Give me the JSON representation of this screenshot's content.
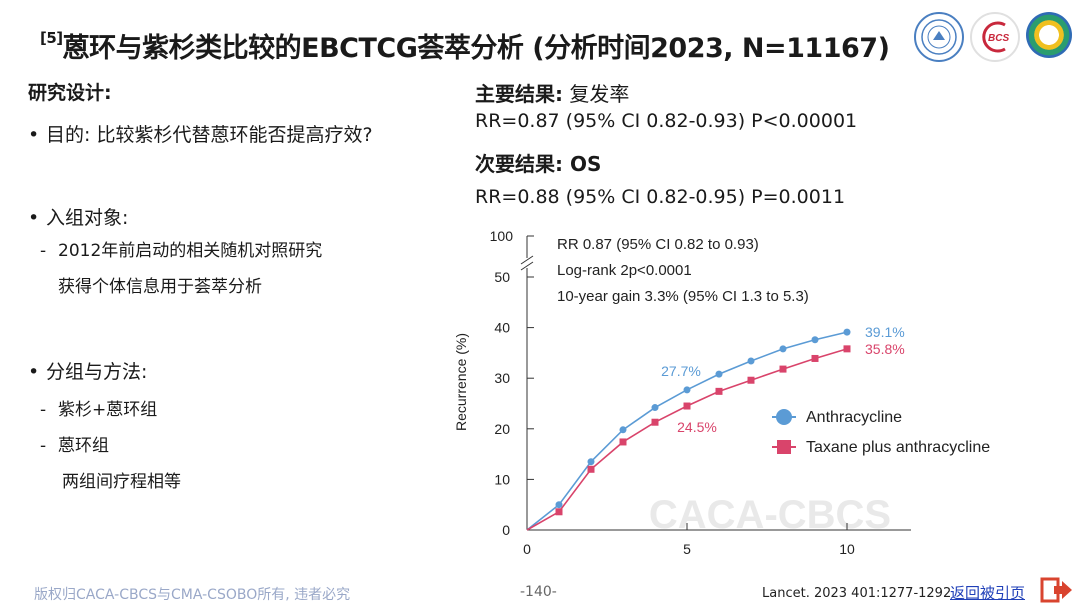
{
  "header": {
    "ref": "[5]",
    "title": "蒽环与紫杉类比较的EBCTCG荟萃分析 (分析时间2023, N=11167)",
    "logos": [
      "university-seal-logo",
      "bcs-logo",
      "ring-logo"
    ]
  },
  "design": {
    "heading": "研究设计:",
    "purpose": "目的: 比较紫杉代替蒽环能否提高疗效?",
    "population_label": "入组对象:",
    "population_item_1": "2012年前启动的相关随机对照研究",
    "population_item_2": "获得个体信息用于荟萃分析",
    "groups_label": "分组与方法:",
    "group_1": "紫杉+蒽环组",
    "group_2": "蒽环组",
    "group_note": "两组间疗程相等"
  },
  "results": {
    "primary_label": "主要结果:",
    "primary_metric": "复发率",
    "primary_value": "RR=0.87 (95% CI 0.82-0.93) P<0.00001",
    "secondary_label": "次要结果:",
    "secondary_metric": "OS",
    "secondary_value": "RR=0.88 (95% CI 0.82-0.95) P=0.0011"
  },
  "chart_data": {
    "type": "line",
    "title": "",
    "xlabel": "",
    "ylabel": "Recurrence (%)",
    "xlim": [
      0,
      12
    ],
    "ylim": [
      0,
      50
    ],
    "broken_axis_top_tick": "100",
    "x_ticks": [
      0,
      5,
      10
    ],
    "y_ticks": [
      0,
      10,
      20,
      30,
      40,
      50
    ],
    "annotations": [
      "RR 0.87 (95% CI 0.82 to 0.93)",
      "Log-rank 2p<0.0001",
      "10-year gain 3.3% (95% CI 1.3 to 5.3)"
    ],
    "legend_placement": "right",
    "series": [
      {
        "name": "Anthracycline",
        "color": "#5b9bd5",
        "marker": "circle",
        "x": [
          0,
          1,
          2,
          3,
          4,
          5,
          6,
          7,
          8,
          9,
          10
        ],
        "y": [
          0,
          5.0,
          13.5,
          19.8,
          24.2,
          27.7,
          30.8,
          33.4,
          35.8,
          37.6,
          39.1
        ],
        "labels": [
          {
            "x": 5,
            "text": "27.7%"
          },
          {
            "x": 10,
            "text": "39.1%"
          }
        ]
      },
      {
        "name": "Taxane plus anthracycline",
        "color": "#d9446b",
        "marker": "square",
        "x": [
          0,
          1,
          2,
          3,
          4,
          5,
          6,
          7,
          8,
          9,
          10
        ],
        "y": [
          0,
          3.6,
          12.0,
          17.4,
          21.3,
          24.5,
          27.4,
          29.6,
          31.8,
          33.9,
          35.8
        ],
        "labels": [
          {
            "x": 5,
            "text": "24.5%"
          },
          {
            "x": 10,
            "text": "35.8%"
          }
        ]
      }
    ],
    "watermark": "CACA-CBCS"
  },
  "footer": {
    "copyright": "版权归CACA-CBCS与CMA-CSOBO所有, 违者必究",
    "page": "-140-",
    "citation": "Lancet. 2023 401:1277-1292",
    "back_link": "返回被引页"
  }
}
